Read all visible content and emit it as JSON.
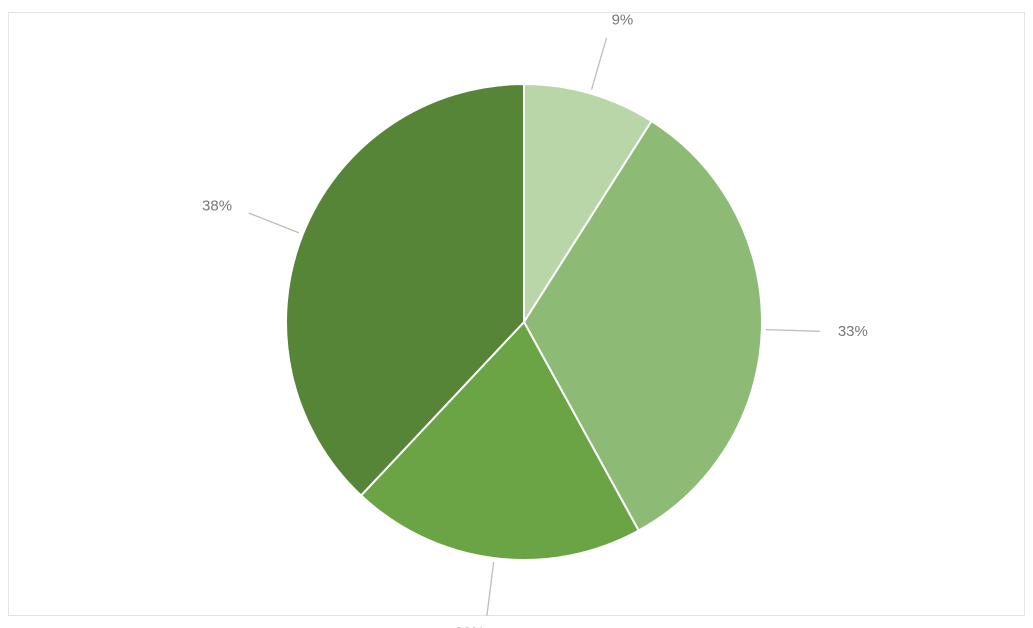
{
  "chart_data": {
    "type": "pie",
    "title": "",
    "slices": [
      {
        "label": "",
        "percent": 9,
        "value": 9,
        "color": "#b8d6a8"
      },
      {
        "label": "",
        "percent": 33,
        "value": 33,
        "color": "#8dbb76"
      },
      {
        "label": "",
        "percent": 20,
        "value": 20,
        "color": "#6aa444"
      },
      {
        "label": "",
        "percent": 38,
        "value": 38,
        "color": "#578537"
      }
    ],
    "start_angle_deg": 0,
    "direction": "clockwise",
    "legend": "none"
  }
}
